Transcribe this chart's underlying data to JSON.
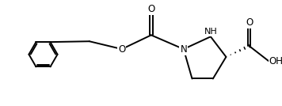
{
  "bg_color": "#ffffff",
  "line_color": "#000000",
  "lw": 1.4,
  "fig_width": 3.56,
  "fig_height": 1.34,
  "dpi": 100,
  "xlim": [
    0,
    10
  ],
  "ylim": [
    0,
    3.8
  ]
}
